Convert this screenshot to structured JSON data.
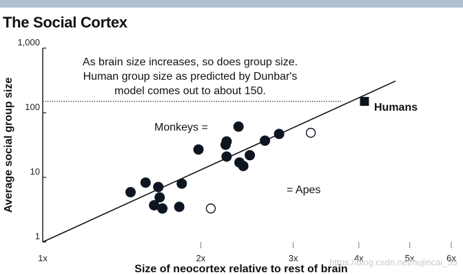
{
  "chart_data": {
    "type": "scatter",
    "title": "The Social Cortex",
    "xlabel": "Size of neocortex relative to rest of brain",
    "ylabel": "Average social group size",
    "xscale": "log",
    "yscale": "log",
    "xlim": [
      1,
      6
    ],
    "ylim": [
      1,
      1000
    ],
    "x_ticks": [
      {
        "value": 1,
        "label": "1x"
      },
      {
        "value": 2,
        "label": "2x"
      },
      {
        "value": 3,
        "label": "3x"
      },
      {
        "value": 4,
        "label": "4x"
      },
      {
        "value": 5,
        "label": "5x"
      },
      {
        "value": 6,
        "label": "6x"
      }
    ],
    "y_ticks": [
      {
        "value": 1,
        "label": "1"
      },
      {
        "value": 10,
        "label": "10"
      },
      {
        "value": 100,
        "label": "100"
      },
      {
        "value": 1000,
        "label": "1,000"
      }
    ],
    "annotation": [
      "As brain size increases, so does group size.",
      "Human group size as predicted by Dunbar's",
      "model comes out to about 150."
    ],
    "legend": {
      "monkeys": "Monkeys =",
      "apes": "= Apes",
      "humans": "Humans"
    },
    "fit_line": {
      "x": [
        1.0,
        4.7
      ],
      "y": [
        1.0,
        310
      ]
    },
    "humans_reference": {
      "y": 150,
      "x_end": 3.7
    },
    "series": [
      {
        "name": "Monkeys",
        "marker": "filled-circle",
        "color": "#0d1520",
        "points": [
          {
            "x": 1.47,
            "y": 5.9
          },
          {
            "x": 1.57,
            "y": 8.3
          },
          {
            "x": 1.63,
            "y": 3.7
          },
          {
            "x": 1.66,
            "y": 7.1
          },
          {
            "x": 1.67,
            "y": 4.9
          },
          {
            "x": 1.69,
            "y": 3.3
          },
          {
            "x": 1.82,
            "y": 3.5
          },
          {
            "x": 1.84,
            "y": 8.0
          },
          {
            "x": 1.98,
            "y": 27
          },
          {
            "x": 2.23,
            "y": 32
          },
          {
            "x": 2.24,
            "y": 36
          },
          {
            "x": 2.24,
            "y": 21
          },
          {
            "x": 2.36,
            "y": 61
          },
          {
            "x": 2.37,
            "y": 17
          },
          {
            "x": 2.41,
            "y": 15
          },
          {
            "x": 2.48,
            "y": 22
          },
          {
            "x": 2.65,
            "y": 37
          },
          {
            "x": 2.82,
            "y": 47
          }
        ]
      },
      {
        "name": "Apes",
        "marker": "open-circle",
        "color": "#0d1520",
        "points": [
          {
            "x": 2.09,
            "y": 3.3
          },
          {
            "x": 3.24,
            "y": 49
          }
        ]
      },
      {
        "name": "Humans",
        "marker": "filled-square",
        "color": "#0d1520",
        "points": [
          {
            "x": 4.1,
            "y": 150
          }
        ]
      }
    ],
    "legend_samples": {
      "monkeys": {
        "x": 2.7,
        "y": 6.7
      },
      "apes": {
        "x": 2.7,
        "y": 6.7
      }
    }
  },
  "watermark": "https://blog.csdn.net/hujincai_55"
}
